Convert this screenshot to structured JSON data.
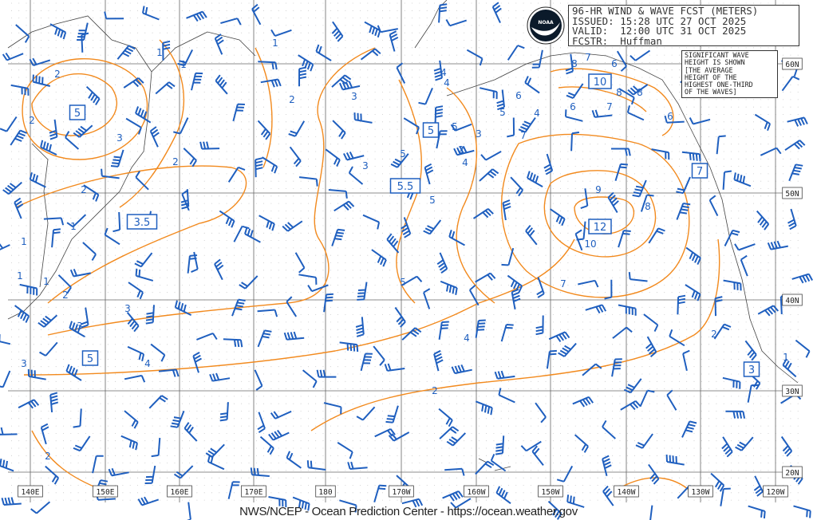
{
  "header": {
    "title": "96-HR WIND & WAVE FCST (METERS)",
    "issued": "ISSUED: 15:28 UTC 27 OCT 2025",
    "valid": "VALID:  12:00 UTC 31 OCT 2025",
    "forecaster": "FCSTR:  Huffman"
  },
  "logo": {
    "text": "NOAA"
  },
  "note": [
    "SIGNIFICANT WAVE",
    "HEIGHT IS SHOWN",
    "[THE AVERAGE",
    "HEIGHT OF THE",
    "HIGHEST ONE-THIRD",
    "OF THE WAVES]"
  ],
  "longitude_labels": [
    "140E",
    "150E",
    "160E",
    "170E",
    "180",
    "170W",
    "160W",
    "150W",
    "140W",
    "130W",
    "120W"
  ],
  "latitude_labels": [
    "60N",
    "50N",
    "40N",
    "30N",
    "20N"
  ],
  "wave_height_centers": [
    "5",
    "5",
    "5.5",
    "3.5",
    "12",
    "10",
    "5",
    "3",
    "7"
  ],
  "contour_labels": [
    "2",
    "1",
    "1",
    "1",
    "2",
    "3",
    "2",
    "1",
    "2",
    "3",
    "4",
    "5",
    "5",
    "5",
    "4",
    "3",
    "2",
    "3",
    "4",
    "5",
    "6",
    "7",
    "8",
    "9",
    "10",
    "8",
    "7",
    "6",
    "8",
    "7",
    "6",
    "4",
    "2",
    "2",
    "3",
    "4",
    "3",
    "2",
    "1",
    "1",
    "1",
    "1",
    "2",
    "3",
    "4",
    "5",
    "2",
    "6",
    "7",
    "8"
  ],
  "footer": "NWS/NCEP - Ocean Prediction Center - https://ocean.weather.gov",
  "colors": {
    "contour": "#f28a1e",
    "wind": "#1f5fbf",
    "grid": "#555555",
    "land": "#333333",
    "ice": "#3ab0e8"
  },
  "icons": {
    "logo": "noaa-seagull-logo",
    "wind": "wind-barb-icon"
  }
}
